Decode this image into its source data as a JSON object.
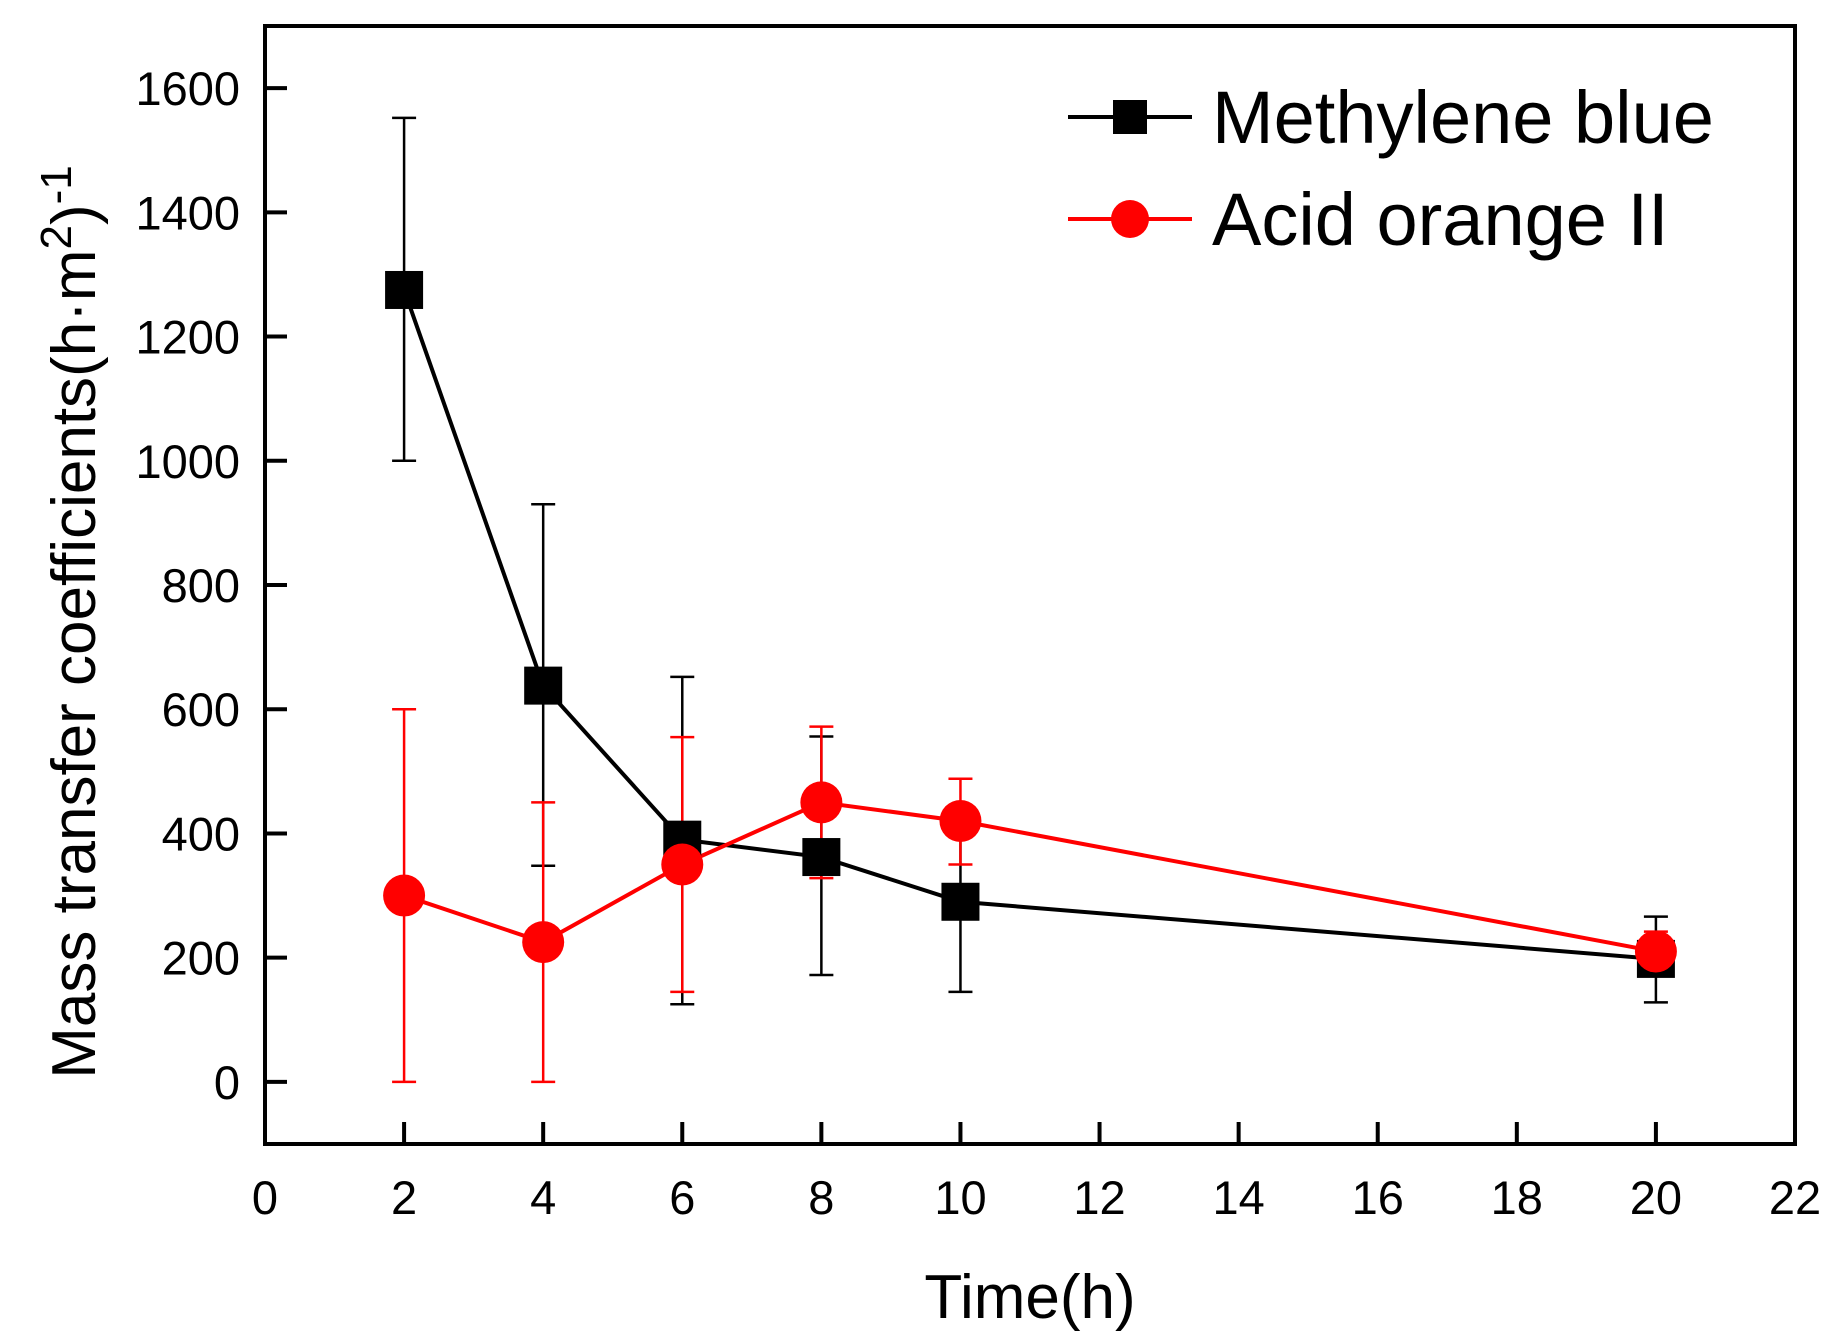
{
  "chart_data": {
    "type": "line",
    "title": "",
    "xlabel": "Time(h)",
    "ylabel_parts": {
      "main": "Mass transfer coefficients(h·m",
      "exp1": "2",
      "close": ")",
      "exp2": "-1"
    },
    "xlim": [
      0,
      22
    ],
    "ylim": [
      -100,
      1700
    ],
    "x_ticks": [
      0,
      2,
      4,
      6,
      8,
      10,
      12,
      14,
      16,
      18,
      20,
      22
    ],
    "y_ticks": [
      0,
      200,
      400,
      600,
      800,
      1000,
      1200,
      1400,
      1600
    ],
    "x_tick_labels": [
      "0",
      "2",
      "4",
      "6",
      "8",
      "10",
      "12",
      "14",
      "16",
      "18",
      "20",
      "22"
    ],
    "y_tick_labels": [
      "0",
      "200",
      "400",
      "600",
      "800",
      "1000",
      "1200",
      "1400",
      "1600"
    ],
    "legend_position": "top-right",
    "grid": false,
    "series": [
      {
        "name": "Methylene blue",
        "color": "#000000",
        "marker": "square",
        "x": [
          2,
          4,
          6,
          8,
          10,
          20
        ],
        "y": [
          1275,
          638,
          390,
          362,
          290,
          198
        ],
        "err_low": [
          1000,
          348,
          125,
          172,
          145,
          128
        ],
        "err_high": [
          1552,
          930,
          652,
          556,
          435,
          266
        ]
      },
      {
        "name": "Acid orange II",
        "color": "#ff0000",
        "marker": "circle",
        "x": [
          2,
          4,
          6,
          8,
          10,
          20
        ],
        "y": [
          300,
          225,
          350,
          450,
          420,
          210
        ],
        "err_low": [
          0,
          0,
          145,
          328,
          350,
          178
        ],
        "err_high": [
          600,
          450,
          555,
          572,
          488,
          242
        ]
      }
    ]
  }
}
